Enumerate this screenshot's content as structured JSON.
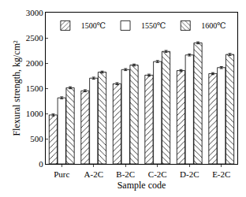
{
  "chart_data": {
    "type": "bar",
    "x_label": "Sample code",
    "y_label": "Flexural strength, kg/cm²",
    "categories": [
      "Purc",
      "A-2C",
      "B-2C",
      "C-2C",
      "D-2C",
      "E-2C"
    ],
    "series": [
      {
        "name": "1500℃",
        "color": "#ffffff",
        "values": [
          970,
          1450,
          1590,
          1760,
          1850,
          1790
        ],
        "errors": [
          20,
          20,
          20,
          20,
          20,
          20
        ]
      },
      {
        "name": "1550℃",
        "color": "#ffffff",
        "values": [
          1310,
          1700,
          1870,
          2030,
          2160,
          1910
        ],
        "errors": [
          20,
          20,
          20,
          20,
          20,
          20
        ]
      },
      {
        "name": "1600℃",
        "color": "#ffffff",
        "values": [
          1510,
          1820,
          1960,
          2230,
          2400,
          2170
        ],
        "errors": [
          20,
          20,
          20,
          20,
          20,
          20
        ]
      }
    ],
    "ylim": [
      0,
      3000
    ],
    "yticks": [
      0,
      500,
      1000,
      1500,
      2000,
      2500,
      3000
    ],
    "grid": false,
    "legend": "upper left"
  }
}
